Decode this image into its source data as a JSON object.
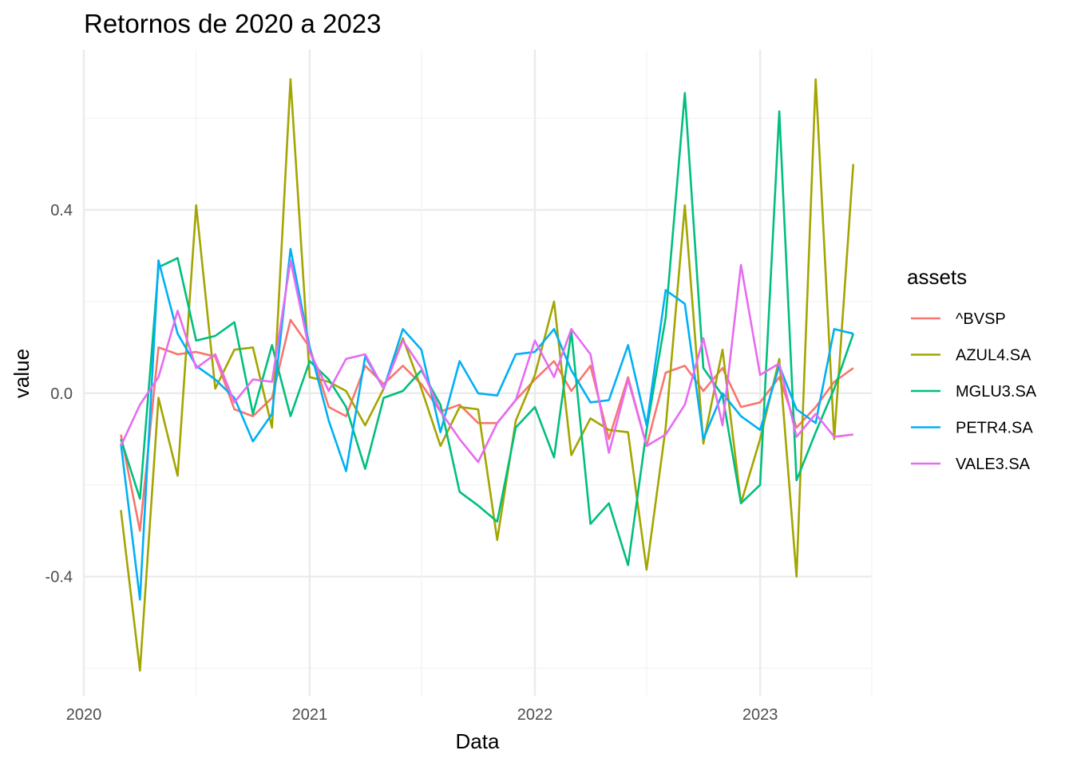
{
  "chart_data": {
    "type": "line",
    "title": "Retornos de 2020 a 2023",
    "xlabel": "Data",
    "ylabel": "value",
    "x_ticks": [
      "2020",
      "2021",
      "2022",
      "2023"
    ],
    "y_ticks": [
      "-0.4",
      "0.0",
      "0.4"
    ],
    "ylim": [
      -0.66,
      0.75
    ],
    "xlim": [
      "2020-01-01",
      "2023-07-01"
    ],
    "grid": true,
    "legend": {
      "title": "assets",
      "position": "right"
    },
    "x": [
      "2020-03-01",
      "2020-04-01",
      "2020-05-01",
      "2020-06-01",
      "2020-07-01",
      "2020-08-01",
      "2020-09-01",
      "2020-10-01",
      "2020-11-01",
      "2020-12-01",
      "2021-01-01",
      "2021-02-01",
      "2021-03-01",
      "2021-04-01",
      "2021-05-01",
      "2021-06-01",
      "2021-07-01",
      "2021-08-01",
      "2021-09-01",
      "2021-10-01",
      "2021-11-01",
      "2021-12-01",
      "2022-01-01",
      "2022-02-01",
      "2022-03-01",
      "2022-04-01",
      "2022-05-01",
      "2022-06-01",
      "2022-07-01",
      "2022-08-01",
      "2022-09-01",
      "2022-10-01",
      "2022-11-01",
      "2022-12-01",
      "2023-01-01",
      "2023-02-01",
      "2023-03-01",
      "2023-04-01",
      "2023-05-01",
      "2023-06-01"
    ],
    "series": [
      {
        "name": "^BVSP",
        "color": "#F8766D",
        "values": [
          -0.09,
          -0.3,
          0.1,
          0.085,
          0.09,
          0.08,
          -0.035,
          -0.05,
          -0.01,
          0.16,
          0.1,
          -0.03,
          -0.05,
          0.06,
          0.02,
          0.06,
          0.02,
          -0.04,
          -0.025,
          -0.065,
          -0.065,
          -0.015,
          0.03,
          0.07,
          0.005,
          0.06,
          -0.1,
          0.035,
          -0.115,
          0.045,
          0.06,
          0.005,
          0.055,
          -0.03,
          -0.02,
          0.035,
          -0.075,
          -0.03,
          0.025,
          0.055
        ]
      },
      {
        "name": "AZUL4.SA",
        "color": "#A3A500",
        "values": [
          -0.255,
          -0.605,
          -0.01,
          -0.18,
          0.41,
          0.01,
          0.095,
          0.1,
          -0.075,
          0.685,
          0.035,
          0.025,
          0.005,
          -0.07,
          0.01,
          0.12,
          0.01,
          -0.115,
          -0.03,
          -0.035,
          -0.32,
          -0.06,
          0.04,
          0.2,
          -0.135,
          -0.055,
          -0.08,
          -0.085,
          -0.385,
          -0.075,
          0.41,
          -0.11,
          0.095,
          -0.24,
          -0.1,
          0.075,
          -0.4,
          0.685,
          -0.1,
          0.5
        ]
      },
      {
        "name": "MGLU3.SA",
        "color": "#00BF7D",
        "values": [
          -0.1,
          -0.23,
          0.275,
          0.295,
          0.115,
          0.125,
          0.155,
          -0.045,
          0.105,
          -0.05,
          0.07,
          0.03,
          -0.03,
          -0.165,
          -0.01,
          0.005,
          0.05,
          -0.025,
          -0.215,
          -0.245,
          -0.28,
          -0.075,
          -0.03,
          -0.14,
          0.135,
          -0.285,
          -0.24,
          -0.375,
          -0.08,
          0.165,
          0.655,
          0.055,
          -0.005,
          -0.24,
          -0.2,
          0.615,
          -0.19,
          -0.085,
          0.01,
          0.13
        ]
      },
      {
        "name": "PETR4.SA",
        "color": "#00B0F6",
        "values": [
          -0.11,
          -0.45,
          0.29,
          0.13,
          0.06,
          0.03,
          -0.01,
          -0.105,
          -0.045,
          0.315,
          0.1,
          -0.06,
          -0.17,
          0.08,
          0.01,
          0.14,
          0.095,
          -0.085,
          0.07,
          0.0,
          -0.005,
          0.085,
          0.09,
          0.14,
          0.05,
          -0.02,
          -0.015,
          0.105,
          -0.07,
          0.225,
          0.195,
          -0.1,
          0.0,
          -0.05,
          -0.08,
          0.06,
          -0.035,
          -0.065,
          0.14,
          0.13
        ]
      },
      {
        "name": "VALE3.SA",
        "color": "#E76BF3",
        "values": [
          -0.115,
          -0.025,
          0.035,
          0.18,
          0.055,
          0.085,
          -0.02,
          0.03,
          0.025,
          0.29,
          0.09,
          0.005,
          0.075,
          0.085,
          0.01,
          0.115,
          0.055,
          -0.04,
          -0.1,
          -0.15,
          -0.065,
          -0.015,
          0.115,
          0.035,
          0.14,
          0.085,
          -0.13,
          0.03,
          -0.115,
          -0.09,
          -0.025,
          0.12,
          -0.07,
          0.28,
          0.04,
          0.065,
          -0.095,
          -0.045,
          -0.095,
          -0.09
        ]
      }
    ]
  }
}
